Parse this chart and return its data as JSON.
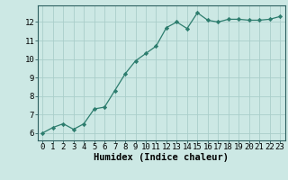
{
  "x": [
    0,
    1,
    2,
    3,
    4,
    5,
    6,
    7,
    8,
    9,
    10,
    11,
    12,
    13,
    14,
    15,
    16,
    17,
    18,
    19,
    20,
    21,
    22,
    23
  ],
  "y": [
    6.0,
    6.3,
    6.5,
    6.2,
    6.5,
    7.3,
    7.4,
    8.3,
    9.2,
    9.9,
    10.3,
    10.7,
    11.7,
    12.0,
    11.65,
    12.5,
    12.1,
    12.0,
    12.15,
    12.15,
    12.1,
    12.1,
    12.15,
    12.3
  ],
  "line_color": "#2d7d6e",
  "marker": "D",
  "marker_size": 2.2,
  "bg_color": "#cce8e4",
  "grid_color": "#aaceca",
  "xlabel": "Humidex (Indice chaleur)",
  "ylim": [
    5.6,
    12.9
  ],
  "xlim": [
    -0.5,
    23.5
  ],
  "yticks": [
    6,
    7,
    8,
    9,
    10,
    11,
    12
  ],
  "xticks": [
    0,
    1,
    2,
    3,
    4,
    5,
    6,
    7,
    8,
    9,
    10,
    11,
    12,
    13,
    14,
    15,
    16,
    17,
    18,
    19,
    20,
    21,
    22,
    23
  ],
  "tick_fontsize": 6.5,
  "xlabel_fontsize": 7.5,
  "axis_color": "#2d7d6e",
  "spine_color": "#2d6060"
}
